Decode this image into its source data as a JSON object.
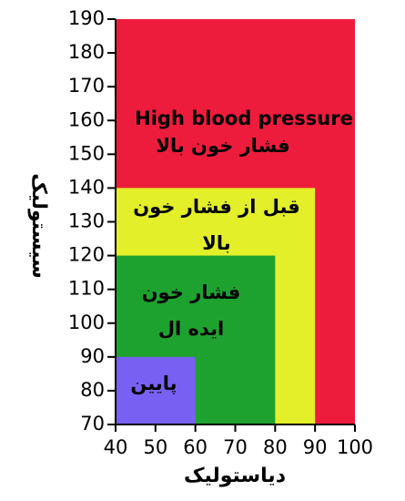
{
  "chart_data": {
    "type": "area",
    "xlabel": "دیاستولیک",
    "ylabel": "سیستولیک",
    "xlim": [
      40,
      100
    ],
    "ylim": [
      70,
      190
    ],
    "xticks": [
      40,
      50,
      60,
      70,
      80,
      90,
      100
    ],
    "yticks": [
      70,
      80,
      90,
      100,
      110,
      120,
      130,
      140,
      150,
      160,
      170,
      180,
      190
    ],
    "regions": [
      {
        "key": "high",
        "x": [
          40,
          100
        ],
        "y": [
          70,
          190
        ],
        "color": "#ee1c3c",
        "labels": [
          "High blood pressure",
          "فشار خون بالا"
        ]
      },
      {
        "key": "pre",
        "x": [
          40,
          90
        ],
        "y": [
          70,
          140
        ],
        "color": "#e3ef28",
        "labels": [
          "قبل از فشار خون",
          "بالا"
        ]
      },
      {
        "key": "ideal",
        "x": [
          40,
          80
        ],
        "y": [
          70,
          120
        ],
        "color": "#1ea22f",
        "labels": [
          "فشار خون",
          "ایده ال"
        ]
      },
      {
        "key": "low",
        "x": [
          40,
          60
        ],
        "y": [
          70,
          90
        ],
        "color": "#7860f2",
        "labels": [
          "پایین"
        ]
      }
    ]
  }
}
